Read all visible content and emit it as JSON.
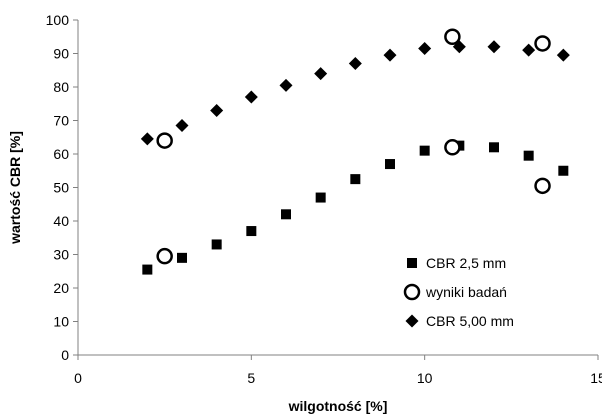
{
  "chart_data": {
    "type": "scatter",
    "title": "",
    "xlabel": "wilgotność [%]",
    "ylabel": "wartość CBR [%]",
    "xlim": [
      0,
      15
    ],
    "ylim": [
      0,
      100
    ],
    "xticks": [
      "0",
      "5",
      "10",
      "15"
    ],
    "yticks": [
      "0",
      "10",
      "20",
      "30",
      "40",
      "50",
      "60",
      "70",
      "80",
      "90",
      "100"
    ],
    "grid": false,
    "legend_position": "lower-right",
    "series": [
      {
        "name": "CBR 2,5 mm",
        "marker": "square",
        "color": "#000000",
        "x": [
          2,
          3,
          4,
          5,
          6,
          7,
          8,
          9,
          10,
          11,
          12,
          13,
          14
        ],
        "y": [
          25.5,
          29,
          33,
          37,
          42,
          47,
          52.5,
          57,
          61,
          62.5,
          62,
          59.5,
          55
        ]
      },
      {
        "name": "wyniki badań",
        "marker": "circle-open",
        "color": "#000000",
        "x": [
          2.5,
          2.5,
          10.8,
          10.8,
          13.4,
          13.4
        ],
        "y": [
          29.5,
          64,
          95,
          62,
          93,
          50.5
        ]
      },
      {
        "name": "CBR 5,00 mm",
        "marker": "diamond",
        "color": "#000000",
        "x": [
          2,
          3,
          4,
          5,
          6,
          7,
          8,
          9,
          10,
          11,
          12,
          13,
          14
        ],
        "y": [
          64.5,
          68.5,
          73,
          77,
          80.5,
          84,
          87,
          89.5,
          91.5,
          92,
          92,
          91,
          89.5
        ]
      }
    ]
  }
}
